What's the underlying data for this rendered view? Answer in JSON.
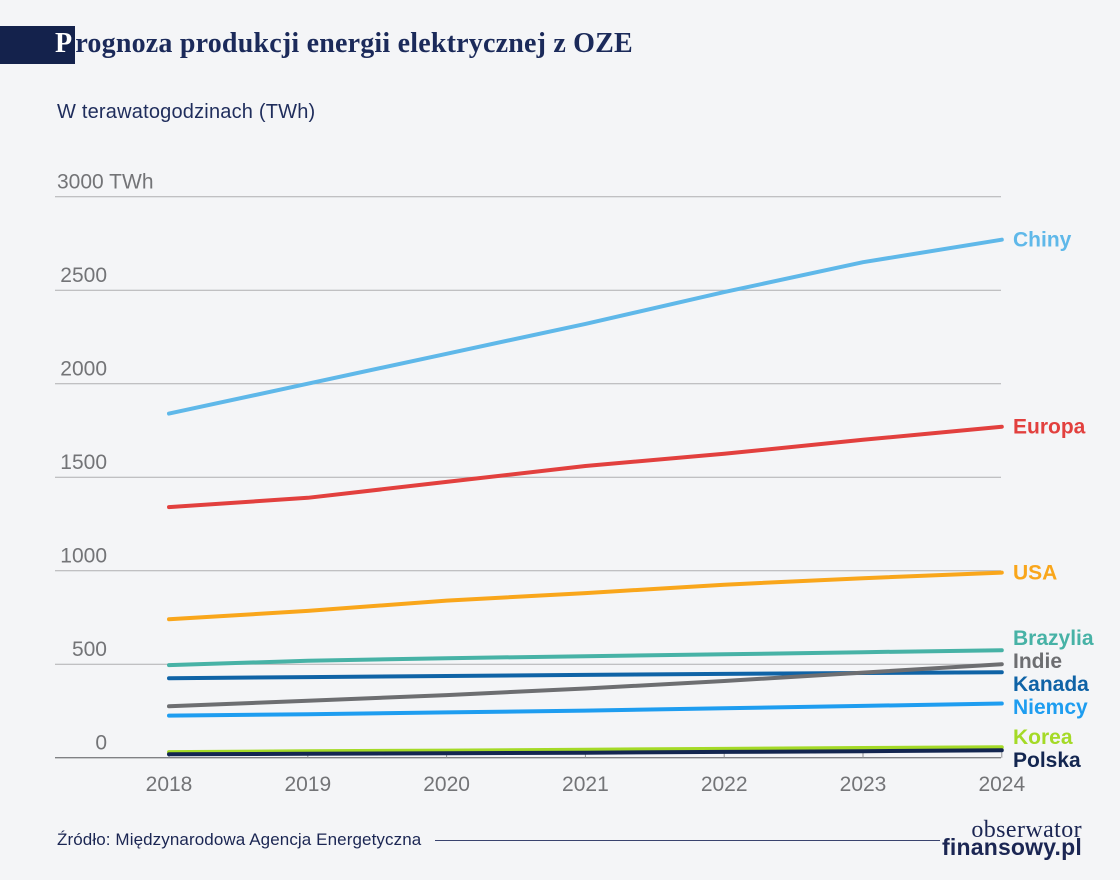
{
  "header": {
    "title": "Prognoza produkcji energii elektrycznej z OZE",
    "subtitle": "W terawatogodzinach (TWh)"
  },
  "footer": {
    "source": "Źródło: Międzynarodowa Agencja Energetyczna",
    "logo_line1": "obserwator",
    "logo_line2": "finansowy.pl"
  },
  "colors": {
    "background": "#F4F5F7",
    "title_navy": "#1B2A5A",
    "badge_navy": "#14224C",
    "subtitle_navy": "#1F2D5C",
    "axis_text": "#737477",
    "gridline": "#AEAFB1",
    "axis_line": "#808184",
    "tick": "#909194",
    "footer_navy": "#1B2653",
    "rule_navy": "#39436E"
  },
  "chart_data": {
    "type": "line",
    "title": "Prognoza produkcji energii elektrycznej z OZE",
    "ylabel": "W terawatogodzinach (TWh)",
    "unit": "TWh",
    "x": [
      2018,
      2019,
      2020,
      2021,
      2022,
      2023,
      2024
    ],
    "ylim": [
      0,
      3000
    ],
    "ytick_values": [
      3000,
      2500,
      2000,
      1500,
      1000,
      500,
      0
    ],
    "ytick_labels": [
      "3000 TWh",
      "2500",
      "2000",
      "1500",
      "1000",
      "500",
      "0"
    ],
    "grid": "horizontal",
    "legend_position": "right-edge-labels",
    "series": [
      {
        "name": "Chiny",
        "color": "#5FB8E9",
        "values": [
          1840,
          2000,
          2160,
          2320,
          2490,
          2650,
          2770
        ]
      },
      {
        "name": "Europa",
        "color": "#E2403E",
        "values": [
          1340,
          1390,
          1475,
          1560,
          1625,
          1700,
          1770
        ]
      },
      {
        "name": "USA",
        "color": "#F9A61B",
        "values": [
          740,
          785,
          840,
          880,
          925,
          960,
          990
        ]
      },
      {
        "name": "Brazylia",
        "color": "#47B2A6",
        "values": [
          495,
          518,
          532,
          543,
          553,
          564,
          575
        ]
      },
      {
        "name": "Kanada",
        "color": "#0F63A6",
        "values": [
          425,
          431,
          437,
          443,
          448,
          453,
          457
        ]
      },
      {
        "name": "Indie",
        "color": "#6D6E71",
        "values": [
          275,
          305,
          335,
          370,
          410,
          455,
          500
        ]
      },
      {
        "name": "Niemcy",
        "color": "#1E9DF0",
        "values": [
          225,
          232,
          242,
          252,
          264,
          277,
          290
        ]
      },
      {
        "name": "Korea",
        "color": "#A4DA27",
        "values": [
          30,
          34,
          38,
          43,
          47,
          52,
          56
        ]
      },
      {
        "name": "Polska",
        "color": "#132650",
        "values": [
          18,
          21,
          24,
          27,
          31,
          35,
          40
        ]
      }
    ]
  }
}
